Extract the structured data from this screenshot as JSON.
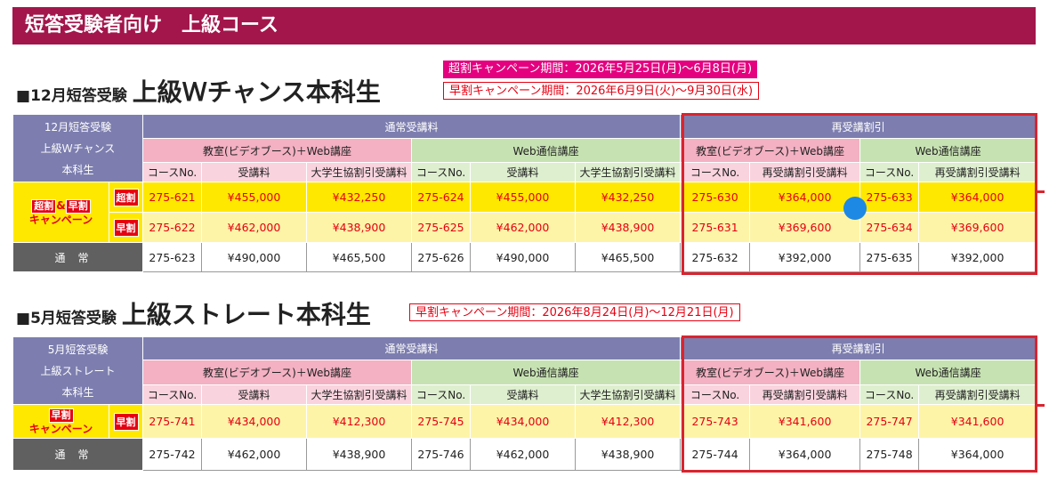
{
  "banner": "短答受験者向け　上級コース",
  "section1": {
    "square": "■",
    "prefix": "12月短答受験",
    "title": "上級Ｗチャンス本科生",
    "campaign_super": "超割キャンペーン期間：2026年5月25日(月)～6月8日(月)",
    "campaign_early": "早割キャンペーン期間：2026年6月9日(火)～9月30日(水)",
    "corner": [
      "12月短答受験",
      "上級Ｗチャンス",
      "本科生"
    ],
    "rows": [
      {
        "badge": "超割",
        "values": [
          "275-621",
          "¥455,000",
          "¥432,250",
          "275-624",
          "¥455,000",
          "¥432,250",
          "275-630",
          "¥364,000",
          "275-633",
          "¥364,000"
        ]
      },
      {
        "badge": "早割",
        "values": [
          "275-622",
          "¥462,000",
          "¥438,900",
          "275-625",
          "¥462,000",
          "¥438,900",
          "275-631",
          "¥369,600",
          "275-634",
          "¥369,600"
        ]
      },
      {
        "label": "通常",
        "values": [
          "275-623",
          "¥490,000",
          "¥465,500",
          "275-626",
          "¥490,000",
          "¥465,500",
          "275-632",
          "¥392,000",
          "275-635",
          "¥392,000"
        ]
      }
    ],
    "camp_label": {
      "a": "超割",
      "amp": "&",
      "b": "早割",
      "c": "キャンペーン"
    }
  },
  "section2": {
    "square": "■",
    "prefix": "5月短答受験",
    "title": "上級ストレート本科生",
    "campaign_early": "早割キャンペーン期間：2026年8月24日(月)～12月21日(月)",
    "corner": [
      "5月短答受験",
      "上級ストレート",
      "本科生"
    ],
    "rows": [
      {
        "badge": "早割",
        "values": [
          "275-741",
          "¥434,000",
          "¥412,300",
          "275-745",
          "¥434,000",
          "¥412,300",
          "275-743",
          "¥341,600",
          "275-747",
          "¥341,600"
        ]
      },
      {
        "label": "通常",
        "values": [
          "275-742",
          "¥462,000",
          "¥438,900",
          "275-746",
          "¥462,000",
          "¥438,900",
          "275-744",
          "¥364,000",
          "275-748",
          "¥364,000"
        ]
      }
    ],
    "camp_label": {
      "a": "早割",
      "c": "キャンペーン"
    }
  },
  "headers": {
    "normal_group": "通常受講料",
    "retake_group": "再受講割引",
    "classroom": "教室(ビデオブース)＋Web講座",
    "web": "Web通信講座",
    "course_no": "コースNo.",
    "fee": "受講料",
    "univ_fee": "大学生協割引受講料",
    "retake_fee": "再受講割引受講料"
  },
  "colors": {
    "banner": "#a3164b",
    "header_purple": "#7d7eaf",
    "pink": "#f3b1c3",
    "green": "#c7e2b2",
    "yellow": "#ffe800",
    "red": "#e60012"
  }
}
